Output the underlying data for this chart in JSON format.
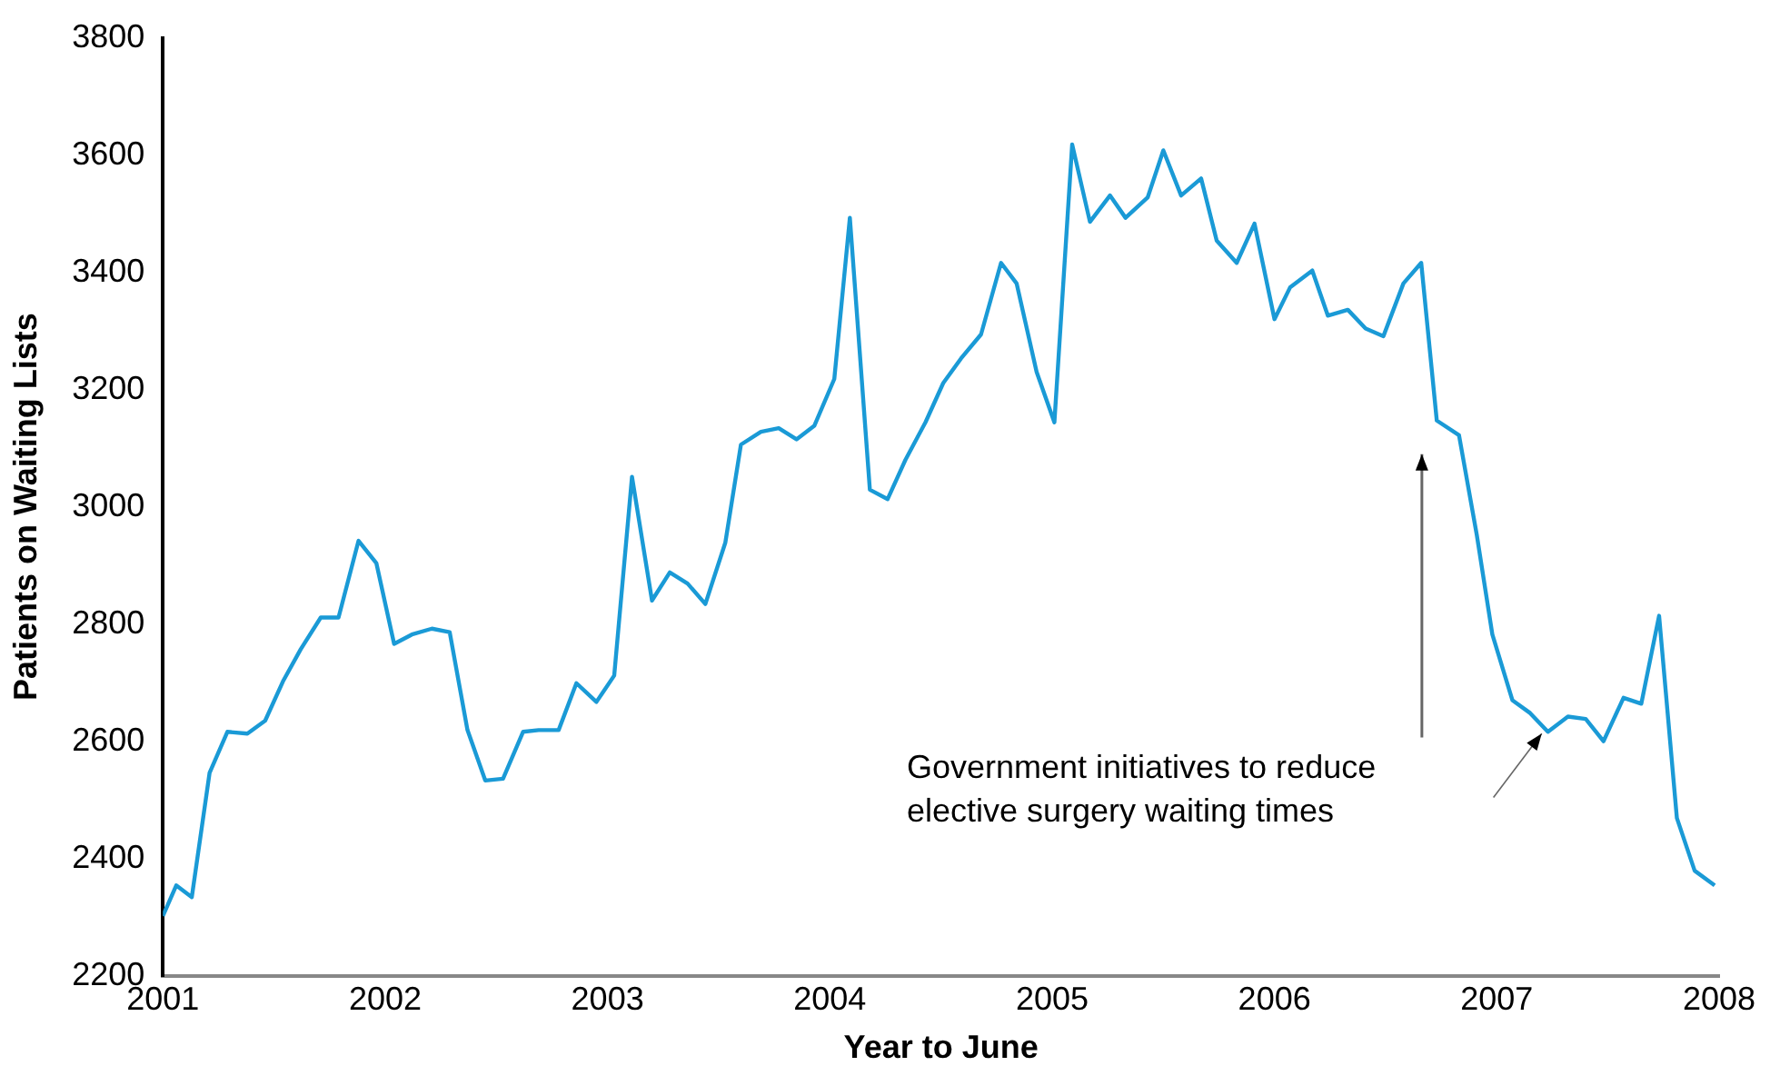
{
  "chart_data": {
    "type": "line",
    "xlabel": "Year to June",
    "ylabel": "Patients on Waiting Lists",
    "x": [
      2001.0,
      2001.06,
      2001.13,
      2001.21,
      2001.29,
      2001.38,
      2001.46,
      2001.54,
      2001.62,
      2001.71,
      2001.79,
      2001.88,
      2001.96,
      2002.04,
      2002.12,
      2002.21,
      2002.29,
      2002.37,
      2002.45,
      2002.53,
      2002.62,
      2002.69,
      2002.78,
      2002.86,
      2002.95,
      2003.03,
      2003.11,
      2003.2,
      2003.28,
      2003.36,
      2003.44,
      2003.53,
      2003.6,
      2003.69,
      2003.77,
      2003.85,
      2003.93,
      2004.02,
      2004.09,
      2004.18,
      2004.26,
      2004.34,
      2004.43,
      2004.51,
      2004.59,
      2004.68,
      2004.77,
      2004.84,
      2004.93,
      2005.01,
      2005.09,
      2005.17,
      2005.26,
      2005.33,
      2005.43,
      2005.5,
      2005.58,
      2005.67,
      2005.74,
      2005.83,
      2005.91,
      2006.0,
      2006.07,
      2006.17,
      2006.24,
      2006.33,
      2006.41,
      2006.49,
      2006.58,
      2006.66,
      2006.73,
      2006.83,
      2006.91,
      2006.98,
      2007.07,
      2007.15,
      2007.23,
      2007.32,
      2007.4,
      2007.48,
      2007.57,
      2007.65,
      2007.73,
      2007.81,
      2007.89,
      2007.98
    ],
    "series": [
      {
        "color": "#1a9ad6",
        "values": [
          2302,
          2354,
          2334,
          2546,
          2616,
          2613,
          2635,
          2702,
          2757,
          2811,
          2811,
          2942,
          2904,
          2766,
          2782,
          2792,
          2786,
          2619,
          2533,
          2536,
          2616,
          2619,
          2619,
          2699,
          2667,
          2712,
          3051,
          2840,
          2888,
          2869,
          2834,
          2939,
          3106,
          3128,
          3134,
          3115,
          3138,
          3218,
          3493,
          3029,
          3013,
          3080,
          3144,
          3211,
          3253,
          3294,
          3416,
          3381,
          3230,
          3144,
          3618,
          3486,
          3531,
          3493,
          3528,
          3608,
          3531,
          3560,
          3454,
          3416,
          3483,
          3320,
          3374,
          3403,
          3326,
          3336,
          3304,
          3291,
          3381,
          3416,
          3147,
          3122,
          2952,
          2782,
          2670,
          2648,
          2616,
          2642,
          2638,
          2600,
          2674,
          2664,
          2814,
          2469,
          2379,
          2354
        ]
      }
    ],
    "xlim": [
      2001,
      2008
    ],
    "xticks": [
      2001,
      2002,
      2003,
      2004,
      2005,
      2006,
      2007,
      2008
    ],
    "ylim": [
      2200,
      3800
    ],
    "yticks": [
      2200,
      2400,
      2600,
      2800,
      3000,
      3200,
      3400,
      3600,
      3800
    ],
    "grid": false,
    "legend": false,
    "marker": "none",
    "line_style": "solid",
    "annotations": [
      "Government initiatives to reduce\nelective surgery waiting times"
    ]
  }
}
